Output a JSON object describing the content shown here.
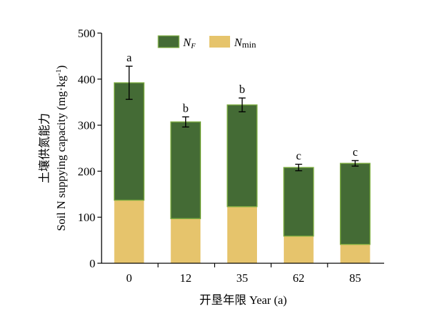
{
  "chart_data": {
    "type": "bar",
    "stacked": true,
    "categories": [
      "0",
      "12",
      "35",
      "62",
      "85"
    ],
    "series": [
      {
        "name": "N_min",
        "legend_main": "N",
        "legend_sub": "min",
        "color": "#e6c46c",
        "values": [
          137,
          97,
          123,
          59,
          41
        ]
      },
      {
        "name": "N_F",
        "legend_main": "N",
        "legend_sub": "F",
        "color": "#446b35",
        "values": [
          255,
          210,
          221,
          149,
          176
        ]
      }
    ],
    "totals": [
      392,
      307,
      344,
      208,
      217
    ],
    "error": [
      36,
      11,
      15,
      7,
      6
    ],
    "significance": [
      "a",
      "b",
      "b",
      "c",
      "c"
    ],
    "ylim": [
      0,
      500
    ],
    "yticks": [
      "0",
      "100",
      "200",
      "300",
      "400",
      "500"
    ],
    "xlabel": "开垦年限 Year (a)",
    "ylabel_cn": "土壤供氮能力",
    "ylabel_en": "Soil N suppying capacity (mg·kg",
    "ylabel_unit_sup": "-1",
    "ylabel_close": ")",
    "bar_edge_color": "#7bab3f",
    "legend_position": "top-center"
  }
}
